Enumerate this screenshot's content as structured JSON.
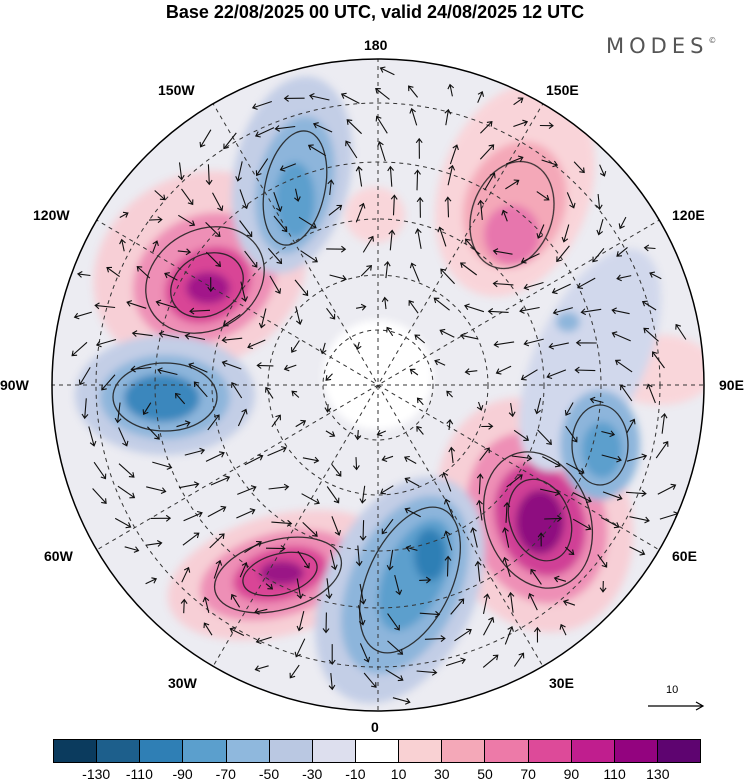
{
  "title": "Base 22/08/2025 00 UTC, valid 24/08/2025 12 UTC",
  "brand": "MODES",
  "brand_mark": "©",
  "map": {
    "labels": {
      "top": "180",
      "bottom": "0",
      "left": "90W",
      "right": "90E",
      "upper_left_1": "150W",
      "upper_left_2": "120W",
      "lower_left_1": "60W",
      "lower_left_2": "30W",
      "upper_right_1": "150E",
      "upper_right_2": "120E",
      "lower_right_1": "60E",
      "lower_right_2": "30E"
    },
    "reference_vector_label": "10"
  },
  "colorbar": {
    "colors": [
      "#0b3b5e",
      "#1d5f8c",
      "#2f7fb5",
      "#5b9fcd",
      "#8fb8dd",
      "#bac8e2",
      "#dddfee",
      "#ffffff",
      "#f9d1d3",
      "#f4a8b8",
      "#ed7aa8",
      "#dd4a99",
      "#c01e8e",
      "#93037f",
      "#5e0470"
    ],
    "ticks": [
      "-130",
      "-110",
      "-90",
      "-70",
      "-50",
      "-30",
      "-10",
      "10",
      "30",
      "50",
      "70",
      "90",
      "110",
      "130"
    ]
  },
  "colors": {
    "positive_strong": "#b3128a",
    "positive_mid": "#e35aa5",
    "positive_weak": "#f6c4cd",
    "negative_strong": "#2f7fb5",
    "negative_mid": "#7ea9d6",
    "negative_weak": "#d4daec"
  }
}
